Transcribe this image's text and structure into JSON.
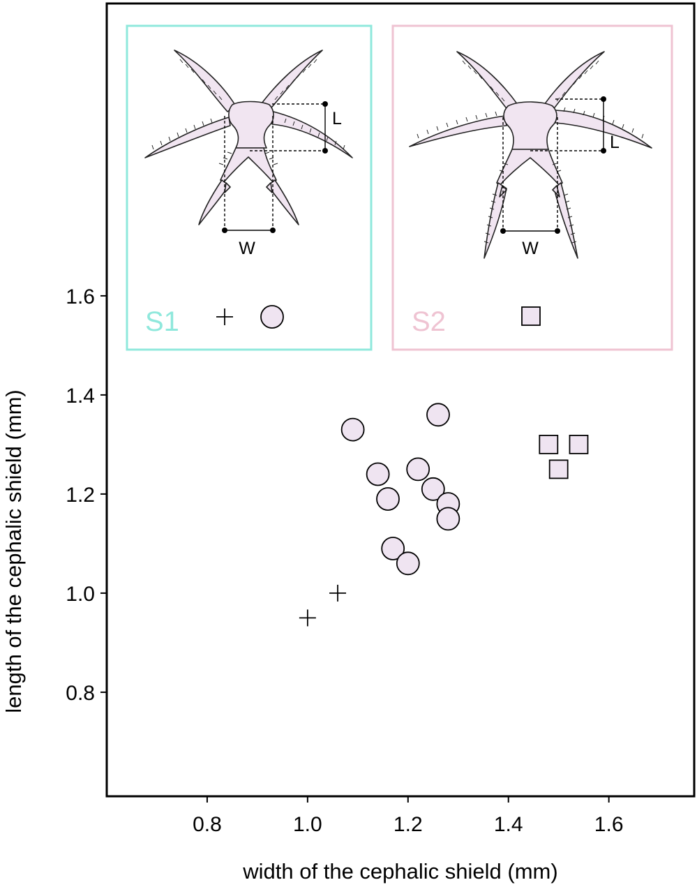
{
  "colors": {
    "marker_fill": "#efe4f1",
    "marker_stroke": "#000000",
    "s1_accent": "#8fe8dc",
    "s2_accent": "#efc3d2",
    "body_fill": "#f1e5f1"
  },
  "chart_data": {
    "type": "scatter",
    "title": "",
    "xlabel": "width of the cephalic shield (mm)",
    "ylabel": "length of the cephalic shield (mm)",
    "xlim": [
      0.6,
      1.77
    ],
    "ylim": [
      0.59,
      2.19
    ],
    "xticks": [
      "0.8",
      "1.0",
      "1.2",
      "1.4",
      "1.6"
    ],
    "yticks": [
      "0.8",
      "1.0",
      "1.2",
      "1.4",
      "1.6"
    ],
    "xtick_values": [
      0.8,
      1.0,
      1.2,
      1.4,
      1.6
    ],
    "ytick_values": [
      0.8,
      1.0,
      1.2,
      1.4,
      1.6
    ],
    "grid": false,
    "legend_placement": "top (inside plot)",
    "series": [
      {
        "group": "S1",
        "marker": "plus",
        "points": [
          {
            "x": 1.0,
            "y": 0.95
          },
          {
            "x": 1.06,
            "y": 1.0
          }
        ]
      },
      {
        "group": "S1",
        "marker": "circle",
        "points": [
          {
            "x": 1.09,
            "y": 1.33
          },
          {
            "x": 1.14,
            "y": 1.24
          },
          {
            "x": 1.16,
            "y": 1.19
          },
          {
            "x": 1.17,
            "y": 1.09
          },
          {
            "x": 1.2,
            "y": 1.06
          },
          {
            "x": 1.22,
            "y": 1.25
          },
          {
            "x": 1.25,
            "y": 1.21
          },
          {
            "x": 1.26,
            "y": 1.36
          },
          {
            "x": 1.28,
            "y": 1.18
          },
          {
            "x": 1.28,
            "y": 1.15
          }
        ]
      },
      {
        "group": "S2",
        "marker": "square",
        "points": [
          {
            "x": 1.48,
            "y": 1.3
          },
          {
            "x": 1.54,
            "y": 1.3
          },
          {
            "x": 1.5,
            "y": 1.25
          }
        ]
      }
    ]
  },
  "legend": {
    "panels": [
      {
        "label": "S1",
        "markers": [
          "plus",
          "circle"
        ],
        "color_key": "s1_accent",
        "dimension_labels": {
          "length": "L",
          "width": "W"
        }
      },
      {
        "label": "S2",
        "markers": [
          "square"
        ],
        "color_key": "s2_accent",
        "dimension_labels": {
          "length": "L",
          "width": "W"
        }
      }
    ]
  }
}
